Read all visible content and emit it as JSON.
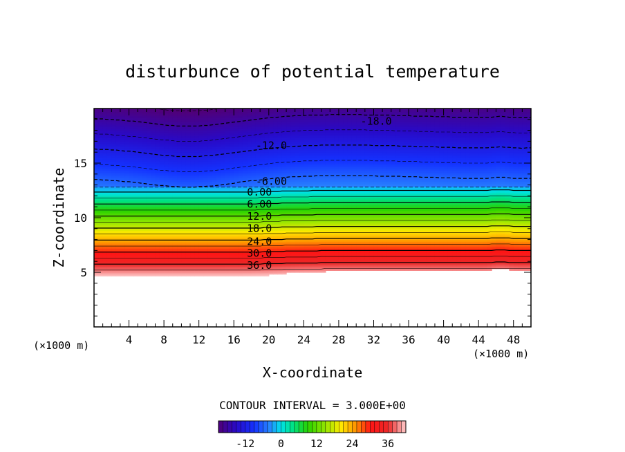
{
  "chart_data": {
    "type": "contour",
    "title": "disturbunce of potential temperature",
    "xlabel": "X-coordinate",
    "ylabel": "Z-coordinate",
    "x_unit_left": "(×1000 m)",
    "x_unit_right": "(×1000 m)",
    "xlim": [
      0,
      50
    ],
    "ylim": [
      0,
      20
    ],
    "x_ticks": [
      4,
      8,
      12,
      16,
      20,
      24,
      28,
      32,
      36,
      40,
      44,
      48
    ],
    "y_ticks": [
      5,
      10,
      15
    ],
    "x_tick_labels": [
      "4",
      "8",
      "12",
      "16",
      "20",
      "24",
      "28",
      "32",
      "36",
      "40",
      "44",
      "48"
    ],
    "y_tick_labels": [
      "5",
      "10",
      "15"
    ],
    "contour_interval_text": "CONTOUR INTERVAL = 3.000E+00",
    "contour_interval": 3.0,
    "value_range": [
      -21,
      42
    ],
    "contour_labels": [
      {
        "text": "-18.0",
        "x": 30.5,
        "z": 18.7,
        "value": -18
      },
      {
        "text": "-12.0",
        "x": 18.5,
        "z": 16.5,
        "value": -12
      },
      {
        "text": "-6.00",
        "x": 18.5,
        "z": 13.2,
        "value": -6
      },
      {
        "text": "0.00",
        "x": 17.5,
        "z": 12.2,
        "value": 0
      },
      {
        "text": "6.00",
        "x": 17.5,
        "z": 11.1,
        "value": 6
      },
      {
        "text": "12.0",
        "x": 17.5,
        "z": 10.0,
        "value": 12
      },
      {
        "text": "18.0",
        "x": 17.5,
        "z": 8.9,
        "value": 18
      },
      {
        "text": "24.0",
        "x": 17.5,
        "z": 7.7,
        "value": 24
      },
      {
        "text": "30.0",
        "x": 17.5,
        "z": 6.6,
        "value": 30
      },
      {
        "text": "36.0",
        "x": 17.5,
        "z": 5.5,
        "value": 36
      }
    ],
    "colorbar": {
      "min": -21,
      "max": 42,
      "tick_values": [
        -12,
        0,
        12,
        24,
        36
      ],
      "tick_labels": [
        "-12",
        "0",
        "12",
        "24",
        "36"
      ]
    },
    "colors": {
      "deep_purple": "#6a1aa8",
      "blue": "#1f3fff",
      "cyan": "#00e0e8",
      "green": "#22d400",
      "yellow": "#ffe800",
      "red": "#ff1a1a",
      "pink": "#ffc8c8"
    }
  }
}
